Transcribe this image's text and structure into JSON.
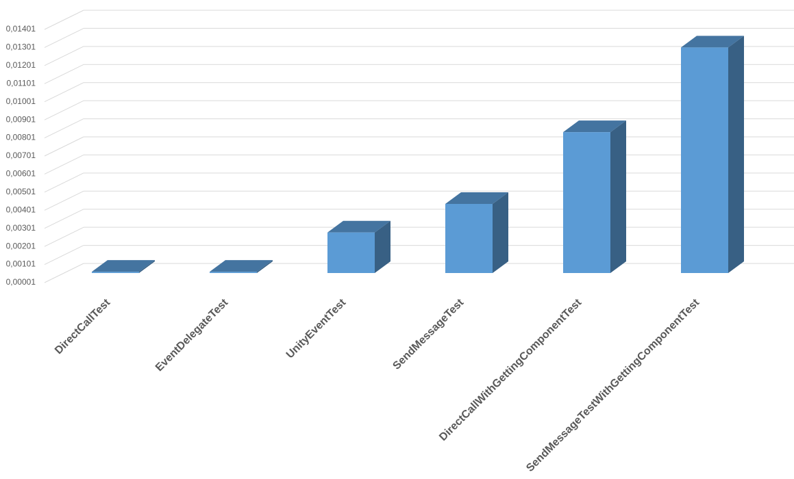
{
  "chart_data": {
    "type": "bar3d",
    "categories": [
      "DirectCallTest",
      "EventDelegateTest",
      "UnityEventTest",
      "SendMessageTest",
      "DirectCallWithGettingComponentTest",
      "SendMessageTestWithGettingComponentTest"
    ],
    "values": [
      8e-05,
      8e-05,
      0.00225,
      0.00383,
      0.0078,
      0.01248
    ],
    "color": "#5b9bd5",
    "ylim": [
      1e-05,
      0.01401
    ],
    "yticks": [
      {
        "value": 1e-05,
        "label": "0,00001"
      },
      {
        "value": 0.00101,
        "label": "0,00101"
      },
      {
        "value": 0.00201,
        "label": "0,00201"
      },
      {
        "value": 0.00301,
        "label": "0,00301"
      },
      {
        "value": 0.00401,
        "label": "0,00401"
      },
      {
        "value": 0.00501,
        "label": "0,00501"
      },
      {
        "value": 0.00601,
        "label": "0,00601"
      },
      {
        "value": 0.00701,
        "label": "0,00701"
      },
      {
        "value": 0.00801,
        "label": "0,00801"
      },
      {
        "value": 0.00901,
        "label": "0,00901"
      },
      {
        "value": 0.01001,
        "label": "0,01001"
      },
      {
        "value": 0.01101,
        "label": "0,01101"
      },
      {
        "value": 0.01201,
        "label": "0,01201"
      },
      {
        "value": 0.01301,
        "label": "0,01301"
      },
      {
        "value": 0.01401,
        "label": "0,01401"
      }
    ],
    "grid": true
  }
}
